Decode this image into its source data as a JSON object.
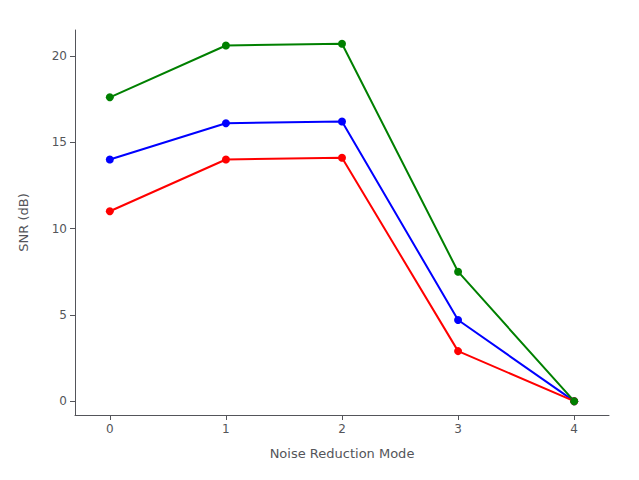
{
  "chart_data": {
    "type": "line",
    "x": [
      0,
      1,
      2,
      3,
      4
    ],
    "series": [
      {
        "color": "blue",
        "values": [
          14.0,
          16.1,
          16.2,
          4.7,
          0.0
        ]
      },
      {
        "color": "red",
        "values": [
          11.0,
          14.0,
          14.1,
          2.9,
          0.0
        ]
      },
      {
        "color": "green",
        "values": [
          17.6,
          20.6,
          20.7,
          7.5,
          0.0
        ]
      }
    ],
    "xlabel": "Noise Reduction Mode",
    "ylabel": "SNR (dB)",
    "xlim": [
      -0.3,
      4.3
    ],
    "ylim": [
      -0.8,
      21.5
    ],
    "xticks": [
      0,
      1,
      2,
      3,
      4
    ],
    "yticks": [
      0,
      5,
      10,
      15,
      20
    ],
    "marker": "circle",
    "grid": false
  }
}
